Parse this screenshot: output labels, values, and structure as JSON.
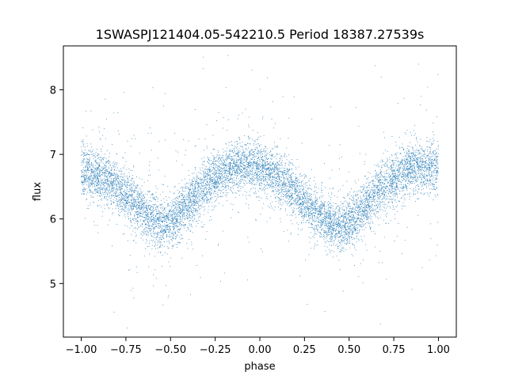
{
  "chart_data": {
    "type": "scatter",
    "title": "1SWASPJ121404.05-542210.5 Period 18387.27539s",
    "xlabel": "phase",
    "ylabel": "flux",
    "xlim": [
      -1.1,
      1.1
    ],
    "ylim": [
      4.17,
      8.68
    ],
    "xticks": [
      -1.0,
      -0.75,
      -0.5,
      -0.25,
      0.0,
      0.25,
      0.5,
      0.75,
      1.0
    ],
    "xtick_labels": [
      "−1.00",
      "−0.75",
      "−0.50",
      "−0.25",
      "0.00",
      "0.25",
      "0.50",
      "0.75",
      "1.00"
    ],
    "yticks": [
      5,
      6,
      7,
      8
    ],
    "ytick_labels": [
      "5",
      "6",
      "7",
      "8"
    ],
    "grid": false,
    "legend": "none",
    "marker_color": "#1f77b4",
    "series": [
      {
        "x": [
          -1.0,
          -0.95,
          -0.9,
          -0.85,
          -0.8,
          -0.75,
          -0.7,
          -0.65,
          -0.6,
          -0.55,
          -0.5,
          -0.45,
          -0.4,
          -0.35,
          -0.3,
          -0.25,
          -0.2,
          -0.15,
          -0.1,
          -0.05,
          0.0,
          0.05,
          0.1,
          0.15,
          0.2,
          0.25,
          0.3,
          0.35,
          0.4,
          0.45,
          0.5,
          0.55,
          0.6,
          0.65,
          0.7,
          0.75,
          0.8,
          0.85,
          0.9,
          0.95,
          1.0
        ],
        "y": [
          6.75,
          6.72,
          6.68,
          6.6,
          6.5,
          6.38,
          6.24,
          6.1,
          5.98,
          5.9,
          5.96,
          6.08,
          6.22,
          6.38,
          6.52,
          6.64,
          6.74,
          6.8,
          6.84,
          6.84,
          6.8,
          6.74,
          6.64,
          6.52,
          6.4,
          6.26,
          6.12,
          6.0,
          5.92,
          5.88,
          5.94,
          6.08,
          6.24,
          6.4,
          6.52,
          6.62,
          6.7,
          6.76,
          6.8,
          6.8,
          6.78
        ]
      }
    ]
  }
}
